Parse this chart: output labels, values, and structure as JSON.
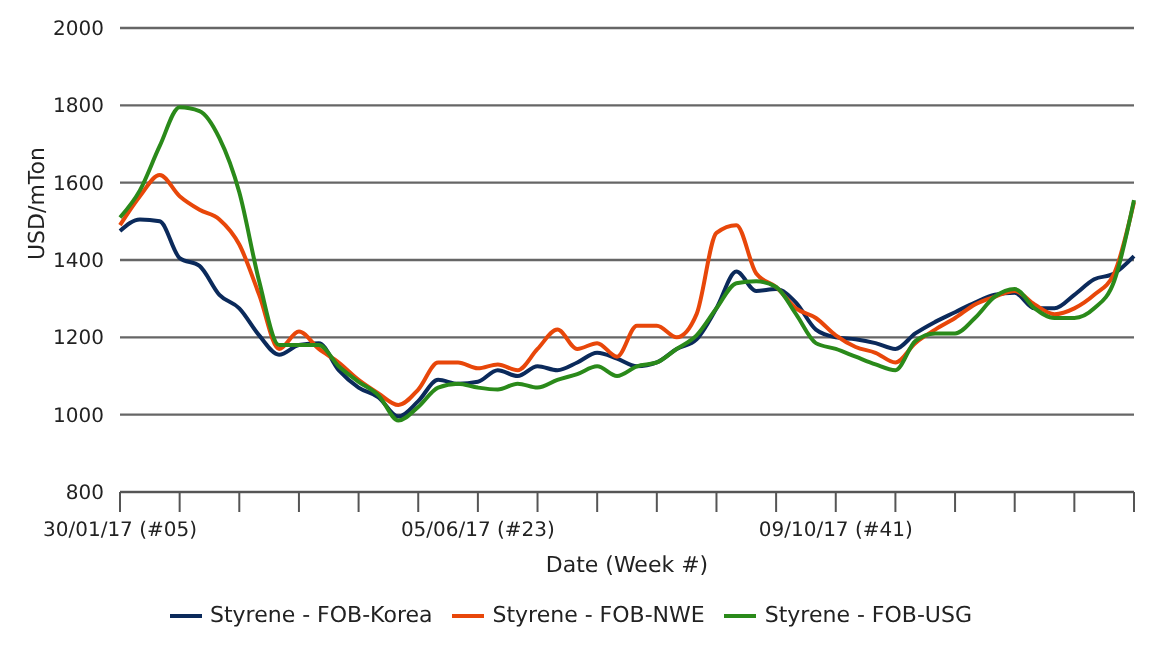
{
  "chart_data": {
    "type": "line",
    "xlabel": "Date (Week #)",
    "ylabel": "USD/mTon",
    "categories": [
      "30/01/17 (#05)",
      null,
      null,
      null,
      null,
      null,
      null,
      null,
      null,
      null,
      null,
      null,
      null,
      null,
      null,
      null,
      null,
      null,
      "05/06/17 (#23)",
      null,
      null,
      null,
      null,
      null,
      null,
      null,
      null,
      null,
      null,
      null,
      null,
      null,
      null,
      null,
      null,
      null,
      "09/10/17 (#41)",
      null,
      null,
      null,
      null,
      null,
      null,
      null,
      null,
      null,
      null,
      null,
      null,
      null,
      null,
      null
    ],
    "series": [
      {
        "name": "Styrene - FOB-Korea",
        "color": "#0b2a5b",
        "values": [
          1475,
          1505,
          1500,
          1405,
          1385,
          1310,
          1275,
          1205,
          1155,
          1180,
          1185,
          1115,
          1070,
          1045,
          995,
          1035,
          1090,
          1080,
          1085,
          1115,
          1100,
          1125,
          1115,
          1135,
          1160,
          1145,
          1125,
          1135,
          1170,
          1195,
          1275,
          1370,
          1320,
          1325,
          1290,
          1220,
          1200,
          1195,
          1185,
          1170,
          1210,
          1240,
          1265,
          1290,
          1310,
          1315,
          1275,
          1275,
          1310,
          1350,
          1365,
          1410
        ]
      },
      {
        "name": "Styrene - FOB-NWE",
        "color": "#e8470a",
        "values": [
          1490,
          1565,
          1620,
          1565,
          1530,
          1505,
          1440,
          1310,
          1170,
          1215,
          1170,
          1135,
          1090,
          1055,
          1025,
          1065,
          1135,
          1135,
          1120,
          1130,
          1115,
          1170,
          1220,
          1170,
          1185,
          1150,
          1230,
          1230,
          1200,
          1260,
          1470,
          1490,
          1365,
          1330,
          1275,
          1250,
          1205,
          1175,
          1160,
          1135,
          1185,
          1220,
          1250,
          1285,
          1305,
          1320,
          1285,
          1260,
          1275,
          1310,
          1365,
          1550
        ]
      },
      {
        "name": "Styrene - FOB-USG",
        "color": "#2a8a1a",
        "values": [
          1510,
          1580,
          1695,
          1795,
          1785,
          1715,
          1575,
          1345,
          1180,
          1180,
          1180,
          1125,
          1085,
          1050,
          985,
          1020,
          1070,
          1080,
          1070,
          1065,
          1080,
          1070,
          1090,
          1105,
          1125,
          1100,
          1125,
          1135,
          1170,
          1205,
          1275,
          1340,
          1345,
          1330,
          1260,
          1185,
          1170,
          1150,
          1130,
          1115,
          1190,
          1210,
          1210,
          1250,
          1305,
          1325,
          1275,
          1250,
          1250,
          1275,
          1345,
          1555
        ]
      }
    ],
    "ylim": [
      800,
      2000
    ],
    "yticks": [
      800,
      1000,
      1200,
      1400,
      1600,
      1800,
      2000
    ],
    "grid": "y",
    "legend": "bottom",
    "marker": "none",
    "line_style": "solid"
  }
}
